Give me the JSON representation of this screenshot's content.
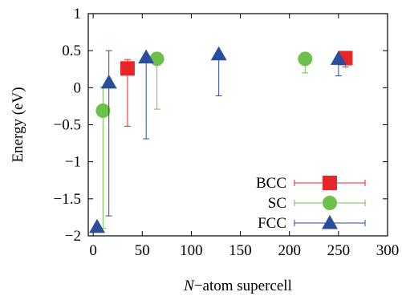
{
  "chart_data": {
    "type": "scatter",
    "title": "",
    "xlabel": {
      "italic": "N",
      "rest": "−atom supercell"
    },
    "ylabel": "Energy (eV)",
    "xlim": [
      -5,
      300
    ],
    "ylim": [
      -2,
      1
    ],
    "xticks": [
      0,
      50,
      100,
      150,
      200,
      250,
      300
    ],
    "yticks": [
      -2,
      -1.5,
      -1,
      -0.5,
      0,
      0.5,
      1
    ],
    "grid": false,
    "legend": "bottom-right",
    "series": [
      {
        "name": "BCC",
        "color": "#e8262a",
        "marker": "square",
        "points": [
          {
            "x": 35,
            "y": 0.26,
            "ylow": -0.52,
            "yhigh": 0.38
          },
          {
            "x": 257,
            "y": 0.4,
            "ylow": 0.28,
            "yhigh": 0.44
          }
        ]
      },
      {
        "name": "SC",
        "color": "#6cc14a",
        "marker": "circle",
        "points": [
          {
            "x": 10,
            "y": -0.31,
            "ylow": -1.9,
            "yhigh": 0.01
          },
          {
            "x": 65,
            "y": 0.39,
            "ylow": -0.29,
            "yhigh": 0.42
          },
          {
            "x": 216,
            "y": 0.39,
            "ylow": 0.2,
            "yhigh": 0.42
          }
        ]
      },
      {
        "name": "FCC",
        "color": "#2a4d9c",
        "marker": "triangle",
        "points": [
          {
            "x": 4,
            "y": -1.88,
            "ylow": -1.88,
            "yhigh": -1.88
          },
          {
            "x": 16,
            "y": 0.07,
            "ylow": -1.73,
            "yhigh": 0.5
          },
          {
            "x": 54,
            "y": 0.41,
            "ylow": -0.69,
            "yhigh": 0.44
          },
          {
            "x": 128,
            "y": 0.45,
            "ylow": -0.11,
            "yhigh": 0.45
          },
          {
            "x": 250,
            "y": 0.39,
            "ylow": 0.16,
            "yhigh": 0.41
          }
        ]
      }
    ]
  }
}
